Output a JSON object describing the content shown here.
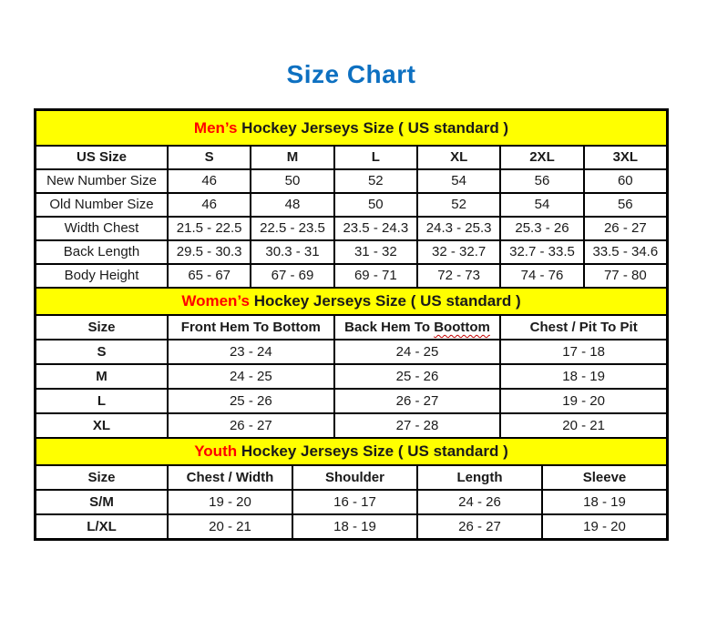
{
  "page": {
    "title": "Size Chart"
  },
  "colors": {
    "title_blue": "#0d70c1",
    "heading_yellow": "#ffff00",
    "accent_red": "#ff0000",
    "border_black": "#000000"
  },
  "tables": {
    "mens": {
      "heading_accent": "Men’s",
      "heading_rest": " Hockey Jerseys Size ( US standard )",
      "columns": [
        "US Size",
        "S",
        "M",
        "L",
        "XL",
        "2XL",
        "3XL"
      ],
      "rows": [
        {
          "label": "New Number Size",
          "values": [
            "46",
            "50",
            "52",
            "54",
            "56",
            "60"
          ]
        },
        {
          "label": "Old Number Size",
          "values": [
            "46",
            "48",
            "50",
            "52",
            "54",
            "56"
          ]
        },
        {
          "label": "Width Chest",
          "values": [
            "21.5 - 22.5",
            "22.5 - 23.5",
            "23.5 - 24.3",
            "24.3 - 25.3",
            "25.3 - 26",
            "26 - 27"
          ]
        },
        {
          "label": "Back Length",
          "values": [
            "29.5 - 30.3",
            "30.3 - 31",
            "31 - 32",
            "32 - 32.7",
            "32.7 - 33.5",
            "33.5 - 34.6"
          ]
        },
        {
          "label": "Body Height",
          "values": [
            "65 - 67",
            "67 - 69",
            "69 - 71",
            "72 - 73",
            "74 - 76",
            "77 - 80"
          ]
        }
      ]
    },
    "womens": {
      "heading_accent": "Women’s",
      "heading_rest": " Hockey Jerseys Size ( US standard )",
      "columns": [
        "Size",
        "Front Hem To Bottom",
        {
          "before": "Back Hem To ",
          "squiggle": "Boottom"
        },
        "Chest / Pit To Pit"
      ],
      "rows": [
        {
          "label": "S",
          "values": [
            "23 - 24",
            "24 - 25",
            "17 - 18"
          ]
        },
        {
          "label": "M",
          "values": [
            "24 - 25",
            "25 - 26",
            "18 - 19"
          ]
        },
        {
          "label": "L",
          "values": [
            "25 - 26",
            "26 - 27",
            "19 - 20"
          ]
        },
        {
          "label": "XL",
          "values": [
            "26 - 27",
            "27 - 28",
            "20 - 21"
          ]
        }
      ]
    },
    "youth": {
      "heading_accent": "Youth",
      "heading_rest": " Hockey Jerseys Size ( US standard )",
      "columns": [
        "Size",
        "Chest / Width",
        "Shoulder",
        "Length",
        "Sleeve"
      ],
      "rows": [
        {
          "label": "S/M",
          "values": [
            "19 - 20",
            "16 - 17",
            "24 - 26",
            "18 - 19"
          ]
        },
        {
          "label": "L/XL",
          "values": [
            "20 - 21",
            "18 - 19",
            "26 - 27",
            "19 - 20"
          ]
        }
      ]
    }
  }
}
